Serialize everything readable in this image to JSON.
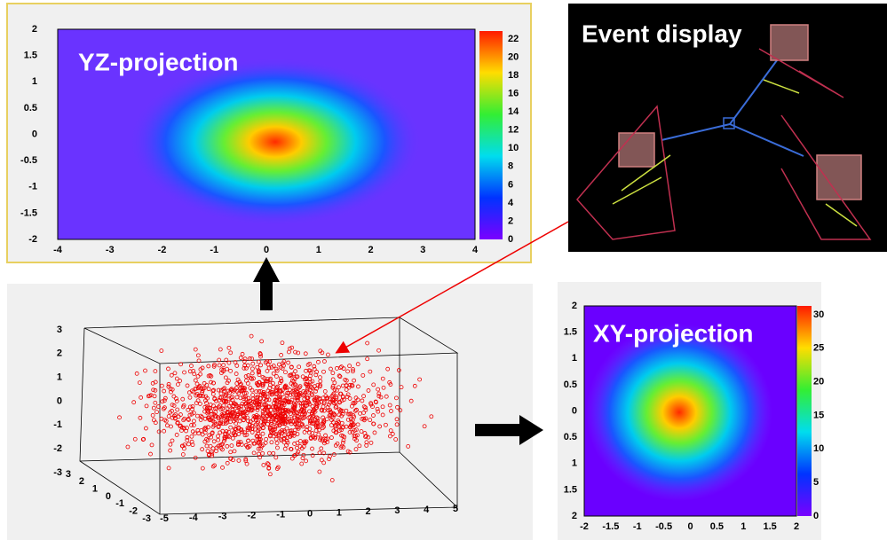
{
  "yz_panel": {
    "label": "YZ-projection",
    "xticks": [
      "-4",
      "-3",
      "-2",
      "-1",
      "0",
      "1",
      "2",
      "3",
      "4"
    ],
    "yticks": [
      "2",
      "1.5",
      "1",
      "0.5",
      "0",
      "-0.5",
      "-1",
      "-1.5",
      "-2"
    ],
    "colorbar": [
      "22",
      "20",
      "18",
      "16",
      "14",
      "12",
      "10",
      "8",
      "6",
      "4",
      "2",
      "0"
    ]
  },
  "event_display": {
    "label": "Event display"
  },
  "scatter3d": {
    "yticks": [
      "3",
      "2",
      "1",
      "0",
      "-1",
      "-2",
      "-3"
    ],
    "zticks": [
      "3",
      "2",
      "1",
      "0",
      "-1",
      "-2",
      "-3"
    ],
    "xticks": [
      "-5",
      "-4",
      "-3",
      "-2",
      "-1",
      "0",
      "1",
      "2",
      "3",
      "4",
      "5"
    ]
  },
  "xy_panel": {
    "label": "XY-projection",
    "xticks": [
      "-2",
      "-1.5",
      "-1",
      "-0.5",
      "0",
      "0.5",
      "1",
      "1.5",
      "2"
    ],
    "yticks": [
      "2",
      "1.5",
      "1",
      "0.5",
      "0",
      "0.5",
      "1",
      "1.5",
      "2"
    ],
    "colorbar": [
      "30",
      "25",
      "20",
      "15",
      "10",
      "5",
      "0"
    ]
  }
}
